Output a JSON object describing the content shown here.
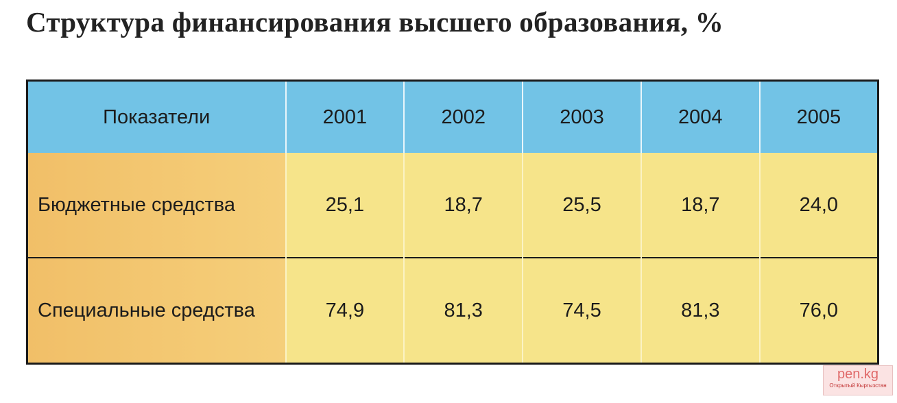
{
  "header": {
    "title": "Структура финансирования высшего образования, %"
  },
  "table": {
    "columns": [
      "Показатели",
      "2001",
      "2002",
      "2003",
      "2004",
      "2005"
    ],
    "rows": [
      [
        "Бюджетные средства",
        "25,1",
        "18,7",
        "25,5",
        "18,7",
        "24,0"
      ],
      [
        "Специальные средства",
        "74,9",
        "81,3",
        "74,5",
        "81,3",
        "76,0"
      ]
    ]
  },
  "watermark": {
    "logo": "pen.kg",
    "caption": "Открытый Кыргызстан"
  }
}
